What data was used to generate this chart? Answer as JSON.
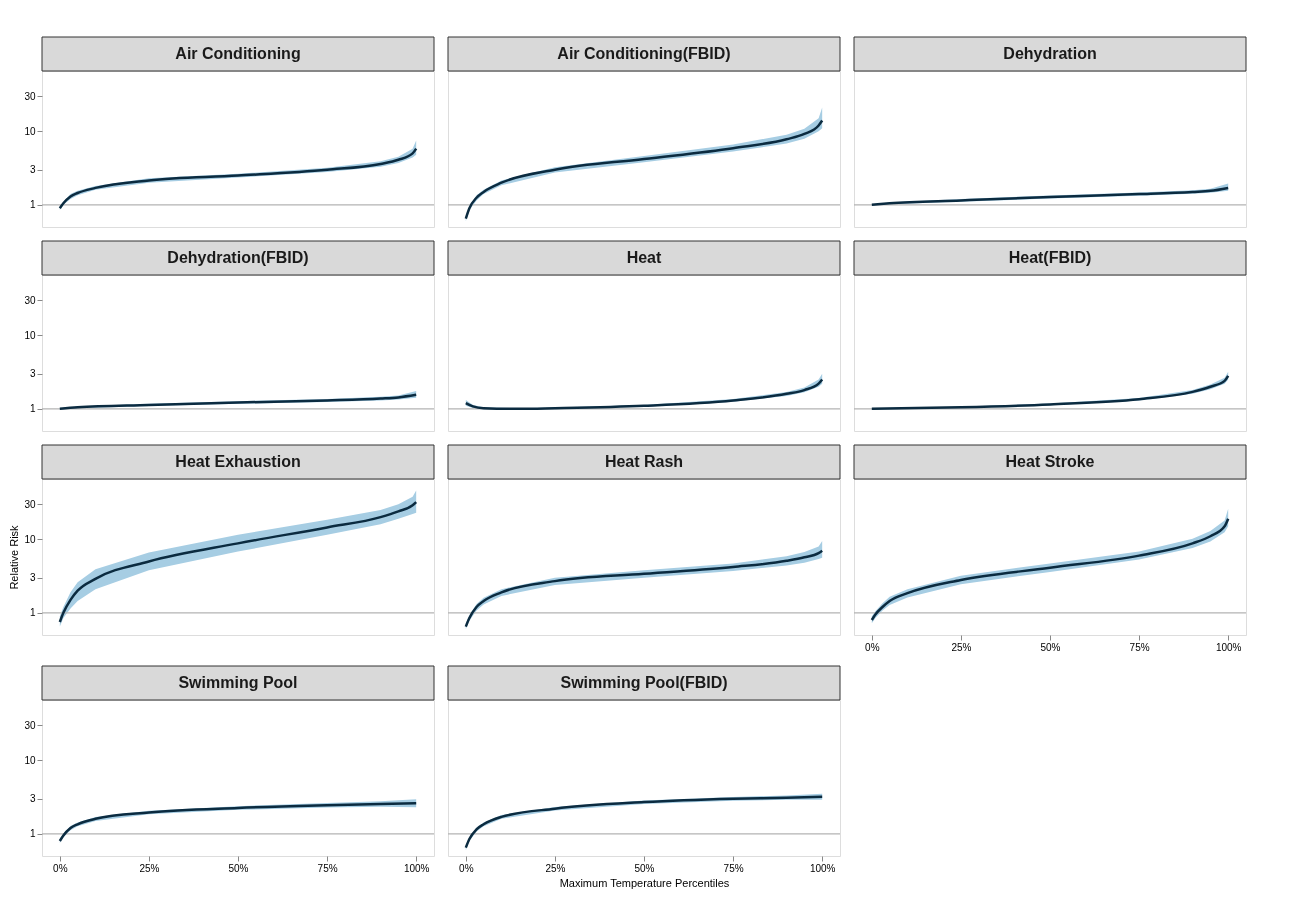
{
  "chart_data": [
    {
      "type": "line",
      "title": "Air Conditioning",
      "x": [
        0,
        1,
        3,
        5,
        10,
        25,
        50,
        75,
        90,
        95,
        99,
        100
      ],
      "series": [
        {
          "color": "#0b2b40",
          "values": [
            0.9,
            1.05,
            1.3,
            1.45,
            1.7,
            2.15,
            2.5,
            3.0,
            3.6,
            4.1,
            5.0,
            5.8
          ],
          "lower": [
            0.85,
            1.0,
            1.2,
            1.35,
            1.6,
            2.0,
            2.35,
            2.8,
            3.3,
            3.7,
            4.4,
            4.8
          ],
          "upper": [
            0.95,
            1.1,
            1.4,
            1.55,
            1.8,
            2.3,
            2.65,
            3.2,
            3.9,
            4.5,
            5.8,
            7.5
          ]
        }
      ],
      "xlim": [
        -5,
        105
      ],
      "ylim": [
        0.5,
        66
      ],
      "yticks": [
        1,
        3,
        10,
        30
      ],
      "log": "y",
      "ref_lines": [
        {
          "axis": "y",
          "value": 1,
          "color": "#b3b3b3"
        }
      ],
      "tick_labels": "y",
      "grid": false
    },
    {
      "type": "line",
      "title": "Air Conditioning(FBID)",
      "x": [
        0,
        1,
        3,
        5,
        10,
        25,
        50,
        75,
        90,
        95,
        99,
        100
      ],
      "series": [
        {
          "color": "#0b2b40",
          "values": [
            0.65,
            0.9,
            1.25,
            1.5,
            2.0,
            3.0,
            4.2,
            5.9,
            7.8,
            9.2,
            12,
            14
          ],
          "lower": [
            0.6,
            0.85,
            1.15,
            1.4,
            1.85,
            2.75,
            3.8,
            5.3,
            6.8,
            7.9,
            10,
            11
          ],
          "upper": [
            0.7,
            0.95,
            1.35,
            1.6,
            2.15,
            3.25,
            4.6,
            6.6,
            9.0,
            10.8,
            15,
            21
          ]
        }
      ],
      "xlim": [
        -5,
        105
      ],
      "ylim": [
        0.5,
        66
      ],
      "log": "y",
      "ref_lines": [
        {
          "axis": "y",
          "value": 1,
          "color": "#b3b3b3"
        }
      ],
      "tick_labels": false,
      "grid": false
    },
    {
      "type": "line",
      "title": "Dehydration",
      "x": [
        0,
        5,
        25,
        50,
        75,
        90,
        95,
        100
      ],
      "series": [
        {
          "color": "#0b2b40",
          "values": [
            1.0,
            1.05,
            1.15,
            1.28,
            1.4,
            1.5,
            1.55,
            1.7
          ],
          "lower": [
            0.98,
            1.02,
            1.1,
            1.22,
            1.33,
            1.42,
            1.46,
            1.55
          ],
          "upper": [
            1.02,
            1.08,
            1.2,
            1.34,
            1.47,
            1.58,
            1.65,
            1.95
          ]
        }
      ],
      "xlim": [
        -5,
        105
      ],
      "ylim": [
        0.5,
        66
      ],
      "log": "y",
      "ref_lines": [
        {
          "axis": "y",
          "value": 1,
          "color": "#b3b3b3"
        }
      ],
      "tick_labels": false,
      "grid": false
    },
    {
      "type": "line",
      "title": "Dehydration(FBID)",
      "x": [
        0,
        5,
        25,
        50,
        75,
        90,
        95,
        100
      ],
      "series": [
        {
          "color": "#0b2b40",
          "values": [
            1.0,
            1.05,
            1.13,
            1.22,
            1.3,
            1.38,
            1.43,
            1.55
          ],
          "lower": [
            0.98,
            1.02,
            1.09,
            1.17,
            1.24,
            1.3,
            1.34,
            1.42
          ],
          "upper": [
            1.02,
            1.08,
            1.17,
            1.27,
            1.36,
            1.46,
            1.52,
            1.75
          ]
        }
      ],
      "xlim": [
        -5,
        105
      ],
      "ylim": [
        0.5,
        66
      ],
      "yticks": [
        1,
        3,
        10,
        30
      ],
      "log": "y",
      "ref_lines": [
        {
          "axis": "y",
          "value": 1,
          "color": "#b3b3b3"
        }
      ],
      "tick_labels": "y",
      "grid": false
    },
    {
      "type": "line",
      "title": "Heat",
      "x": [
        0,
        2,
        5,
        15,
        25,
        50,
        75,
        90,
        95,
        99,
        100
      ],
      "series": [
        {
          "color": "#0b2b40",
          "values": [
            1.2,
            1.08,
            1.02,
            1.0,
            1.02,
            1.1,
            1.3,
            1.6,
            1.8,
            2.2,
            2.5
          ],
          "lower": [
            1.1,
            1.03,
            0.99,
            0.98,
            1.0,
            1.07,
            1.25,
            1.5,
            1.68,
            2.0,
            2.2
          ],
          "upper": [
            1.32,
            1.13,
            1.05,
            1.02,
            1.04,
            1.13,
            1.36,
            1.7,
            1.95,
            2.5,
            3.0
          ]
        }
      ],
      "xlim": [
        -5,
        105
      ],
      "ylim": [
        0.5,
        66
      ],
      "log": "y",
      "ref_lines": [
        {
          "axis": "y",
          "value": 1,
          "color": "#b3b3b3"
        }
      ],
      "tick_labels": false,
      "grid": false
    },
    {
      "type": "line",
      "title": "Heat(FBID)",
      "x": [
        0,
        25,
        50,
        75,
        90,
        95,
        99,
        100
      ],
      "series": [
        {
          "color": "#0b2b40",
          "values": [
            1.0,
            1.05,
            1.15,
            1.35,
            1.7,
            2.0,
            2.4,
            2.8
          ],
          "lower": [
            0.98,
            1.03,
            1.12,
            1.3,
            1.6,
            1.85,
            2.2,
            2.5
          ],
          "upper": [
            1.02,
            1.07,
            1.18,
            1.4,
            1.8,
            2.15,
            2.65,
            3.2
          ]
        }
      ],
      "xlim": [
        -5,
        105
      ],
      "ylim": [
        0.5,
        66
      ],
      "log": "y",
      "ref_lines": [
        {
          "axis": "y",
          "value": 1,
          "color": "#b3b3b3"
        }
      ],
      "tick_labels": false,
      "grid": false
    },
    {
      "type": "line",
      "title": "Heat Exhaustion",
      "ylabel": "Relative Risk",
      "x": [
        0,
        1,
        3,
        5,
        10,
        25,
        50,
        75,
        90,
        95,
        99,
        100
      ],
      "series": [
        {
          "color": "#0b2b40",
          "values": [
            0.75,
            1.0,
            1.5,
            2.0,
            2.9,
            5.0,
            8.8,
            14.5,
            20,
            24,
            29,
            32
          ],
          "lower": [
            0.65,
            0.85,
            1.15,
            1.45,
            2.1,
            3.8,
            6.8,
            11.5,
            16,
            19,
            22,
            23
          ],
          "upper": [
            0.9,
            1.2,
            1.9,
            2.6,
            3.9,
            6.6,
            11.5,
            18.5,
            25,
            30,
            38,
            46
          ]
        }
      ],
      "xlim": [
        -5,
        105
      ],
      "ylim": [
        0.5,
        66
      ],
      "yticks": [
        1,
        3,
        10,
        30
      ],
      "log": "y",
      "ref_lines": [
        {
          "axis": "y",
          "value": 1,
          "color": "#b3b3b3"
        }
      ],
      "tick_labels": "y",
      "grid": false
    },
    {
      "type": "line",
      "title": "Heat Rash",
      "x": [
        0,
        1,
        3,
        5,
        10,
        25,
        50,
        75,
        90,
        95,
        99,
        100
      ],
      "series": [
        {
          "color": "#0b2b40",
          "values": [
            0.65,
            0.85,
            1.2,
            1.45,
            1.9,
            2.7,
            3.4,
            4.2,
            5.1,
            5.7,
            6.5,
            7.0
          ],
          "lower": [
            0.6,
            0.78,
            1.08,
            1.3,
            1.7,
            2.4,
            3.0,
            3.7,
            4.4,
            4.8,
            5.4,
            5.6
          ],
          "upper": [
            0.72,
            0.93,
            1.32,
            1.6,
            2.1,
            3.0,
            3.8,
            4.7,
            5.9,
            6.7,
            8.0,
            9.5
          ]
        }
      ],
      "xlim": [
        -5,
        105
      ],
      "ylim": [
        0.5,
        66
      ],
      "log": "y",
      "ref_lines": [
        {
          "axis": "y",
          "value": 1,
          "color": "#b3b3b3"
        }
      ],
      "tick_labels": false,
      "grid": false
    },
    {
      "type": "line",
      "title": "Heat Stroke",
      "x": [
        0,
        1,
        3,
        5,
        10,
        25,
        50,
        75,
        90,
        95,
        99,
        100
      ],
      "series": [
        {
          "color": "#0b2b40",
          "values": [
            0.8,
            0.95,
            1.2,
            1.45,
            1.85,
            2.8,
            4.1,
            6.0,
            8.8,
            11,
            15,
            19
          ],
          "lower": [
            0.72,
            0.85,
            1.08,
            1.28,
            1.62,
            2.45,
            3.6,
            5.3,
            7.6,
            9.3,
            12.5,
            15
          ],
          "upper": [
            0.9,
            1.05,
            1.35,
            1.65,
            2.1,
            3.2,
            4.7,
            6.8,
            10.2,
            13,
            18,
            26
          ]
        }
      ],
      "xlim": [
        -5,
        105
      ],
      "ylim": [
        0.5,
        66
      ],
      "xticks": [
        {
          "value": 0,
          "label": "0%"
        },
        {
          "value": 25,
          "label": "25%"
        },
        {
          "value": 50,
          "label": "50%"
        },
        {
          "value": 75,
          "label": "75%"
        },
        {
          "value": 100,
          "label": "100%"
        }
      ],
      "log": "y",
      "ref_lines": [
        {
          "axis": "y",
          "value": 1,
          "color": "#b3b3b3"
        }
      ],
      "tick_labels": "x",
      "grid": false
    },
    {
      "type": "line",
      "title": "Swimming Pool",
      "x": [
        0,
        1,
        3,
        5,
        10,
        25,
        50,
        75,
        90,
        100
      ],
      "series": [
        {
          "color": "#0b2b40",
          "values": [
            0.8,
            0.95,
            1.2,
            1.35,
            1.6,
            1.95,
            2.25,
            2.45,
            2.55,
            2.6
          ],
          "lower": [
            0.75,
            0.9,
            1.12,
            1.27,
            1.5,
            1.85,
            2.12,
            2.28,
            2.33,
            2.3
          ],
          "upper": [
            0.86,
            1.0,
            1.28,
            1.43,
            1.7,
            2.06,
            2.38,
            2.62,
            2.78,
            2.95
          ]
        }
      ],
      "xlim": [
        -5,
        105
      ],
      "ylim": [
        0.5,
        66
      ],
      "yticks": [
        1,
        3,
        10,
        30
      ],
      "xticks": [
        {
          "value": 0,
          "label": "0%"
        },
        {
          "value": 25,
          "label": "25%"
        },
        {
          "value": 50,
          "label": "50%"
        },
        {
          "value": 75,
          "label": "75%"
        },
        {
          "value": 100,
          "label": "100%"
        }
      ],
      "log": "y",
      "ref_lines": [
        {
          "axis": "y",
          "value": 1,
          "color": "#b3b3b3"
        }
      ],
      "grid": false
    },
    {
      "type": "line",
      "title": "Swimming Pool(FBID)",
      "xlabel": "Maximum Temperature Percentiles",
      "x": [
        0,
        1,
        3,
        5,
        10,
        25,
        50,
        75,
        90,
        100
      ],
      "series": [
        {
          "color": "#0b2b40",
          "values": [
            0.65,
            0.85,
            1.15,
            1.35,
            1.7,
            2.2,
            2.7,
            3.0,
            3.1,
            3.2
          ],
          "lower": [
            0.6,
            0.8,
            1.08,
            1.27,
            1.6,
            2.08,
            2.55,
            2.82,
            2.9,
            2.9
          ],
          "upper": [
            0.7,
            0.9,
            1.22,
            1.43,
            1.8,
            2.32,
            2.85,
            3.18,
            3.32,
            3.5
          ]
        }
      ],
      "xlim": [
        -5,
        105
      ],
      "ylim": [
        0.5,
        66
      ],
      "xticks": [
        {
          "value": 0,
          "label": "0%"
        },
        {
          "value": 25,
          "label": "25%"
        },
        {
          "value": 50,
          "label": "50%"
        },
        {
          "value": 75,
          "label": "75%"
        },
        {
          "value": 100,
          "label": "100%"
        }
      ],
      "log": "y",
      "ref_lines": [
        {
          "axis": "y",
          "value": 1,
          "color": "#b3b3b3"
        }
      ],
      "tick_labels": "x",
      "grid": false
    }
  ]
}
